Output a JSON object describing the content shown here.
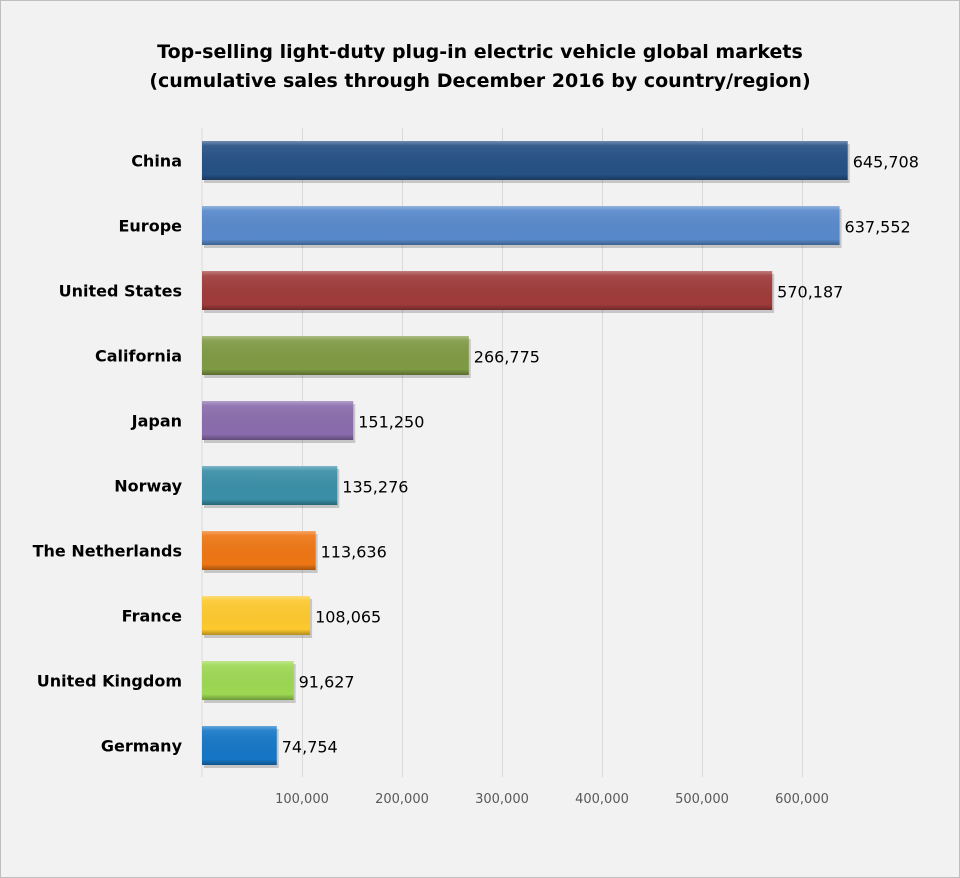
{
  "chart_data": {
    "type": "bar",
    "orientation": "horizontal",
    "title": "Top-selling light-duty plug-in electric vehicle global markets",
    "subtitle": "(cumulative sales through December 2016 by country/region)",
    "xlabel": "",
    "ylabel": "",
    "xlim": [
      0,
      700000
    ],
    "x_ticks": [
      "100,000",
      "200,000",
      "300,000",
      "400,000",
      "500,000",
      "600,000"
    ],
    "x_tick_values": [
      100000,
      200000,
      300000,
      400000,
      500000,
      600000
    ],
    "grid": "vertical",
    "legend": "none",
    "categories": [
      "China",
      "Europe",
      "United States",
      "California",
      "Japan",
      "Norway",
      "The Netherlands",
      "France",
      "United Kingdom",
      "Germany"
    ],
    "values": [
      645708,
      637552,
      570187,
      266775,
      151250,
      135276,
      113636,
      108065,
      91627,
      74754
    ],
    "data_labels": [
      "645,708",
      "637,552",
      "570,187",
      "266,775",
      "151,250",
      "135,276",
      "113,636",
      "108,065",
      "91,627",
      "74,754"
    ],
    "colors": [
      "#255185",
      "#5889cb",
      "#a03b3b",
      "#7f9a44",
      "#8a6cad",
      "#3a8fa8",
      "#ee7614",
      "#fdc92e",
      "#9dd853",
      "#1677c7"
    ]
  }
}
